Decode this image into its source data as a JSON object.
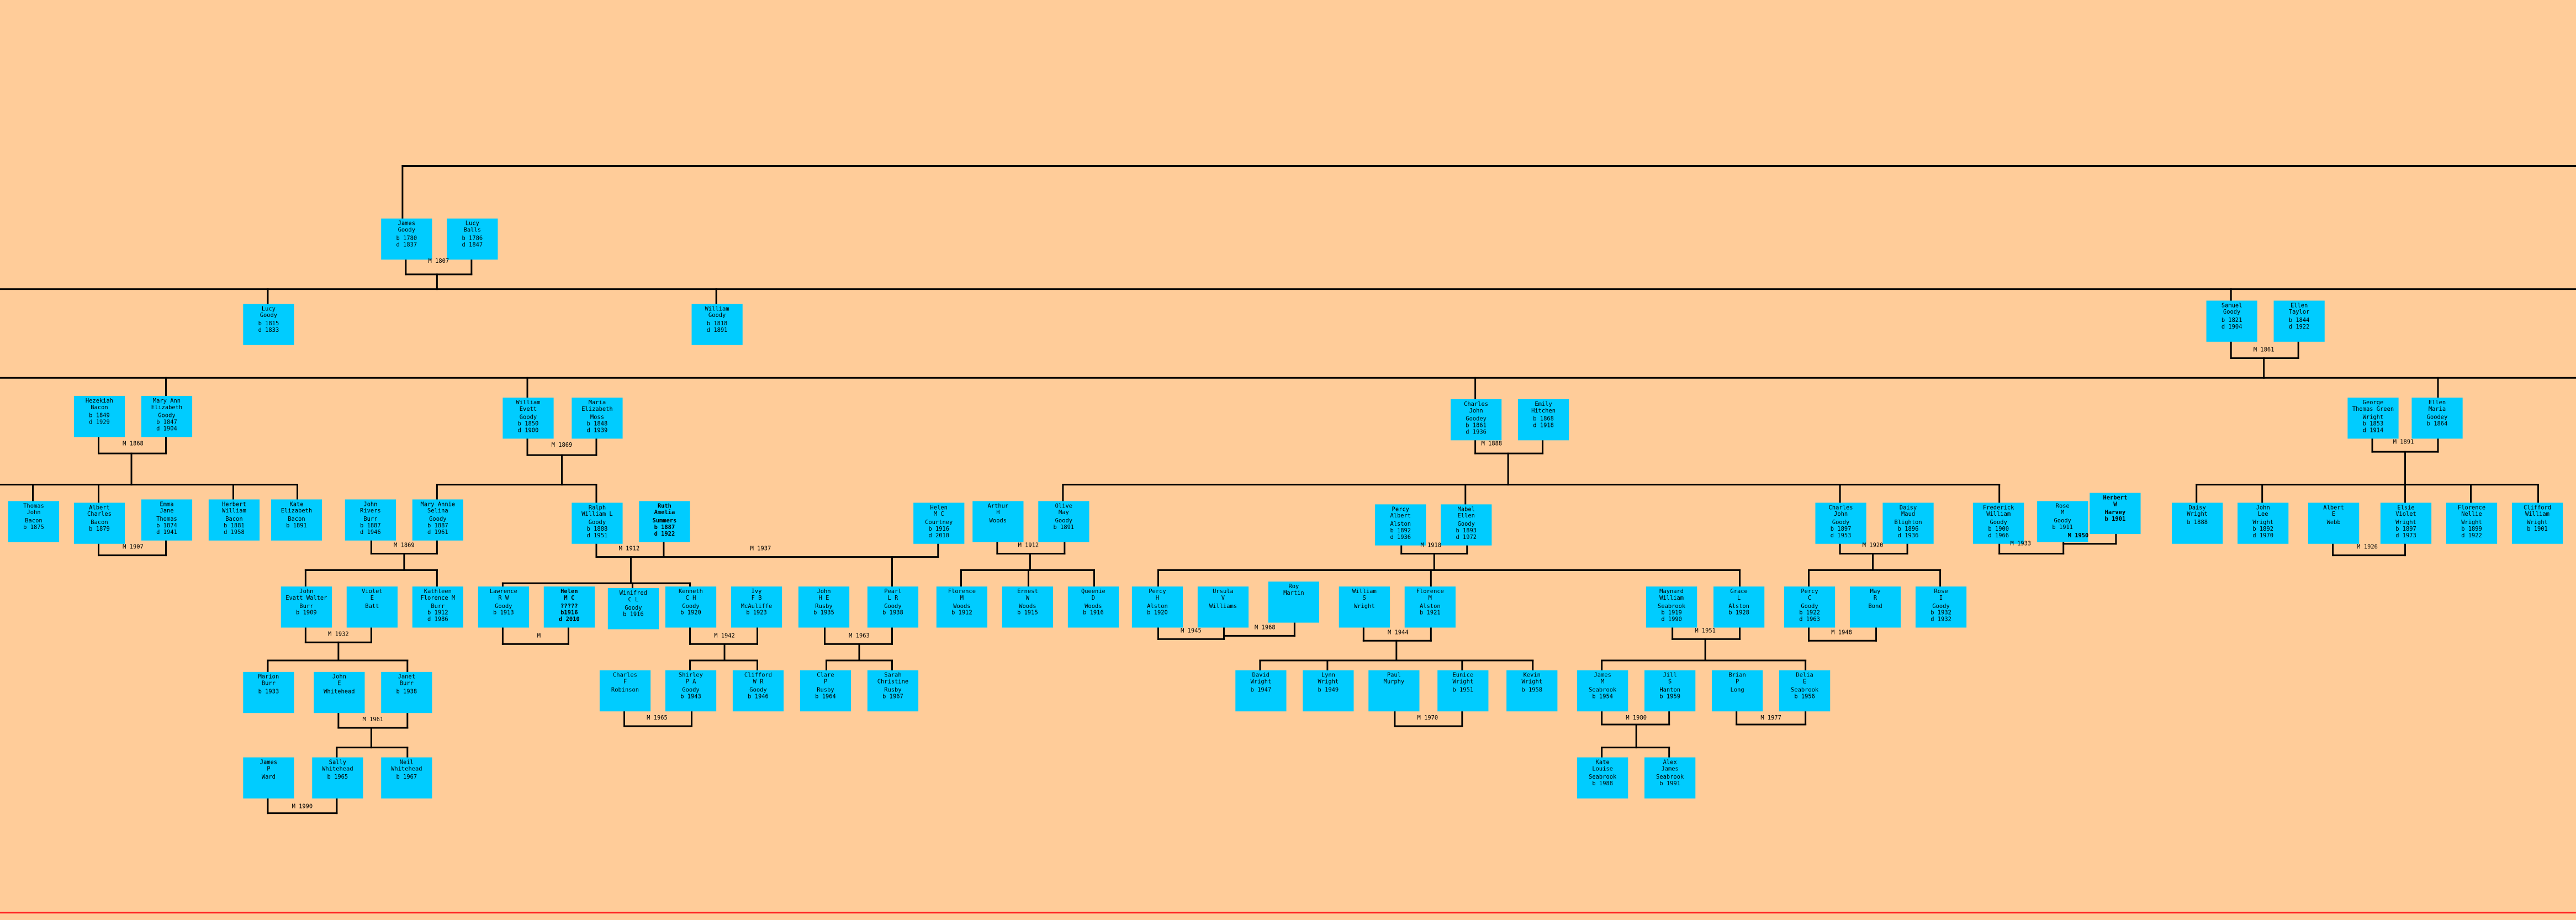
{
  "colors": {
    "background": "#FFCC99",
    "card": "#00CCFF",
    "line": "#000000",
    "bottom_rule": "#FF2020"
  },
  "people": [
    {
      "text": "James\nGoody\nb 1780\nd 1837"
    },
    {
      "text": "Lucy\nBalls\nb 1786\nd 1847"
    },
    {
      "text": "Lucy\nGoody\nb 1815\nd 1833"
    },
    {
      "text": "William\nGoody\nb 1818\nd 1891"
    },
    {
      "text": "Samuel\nGoody\nb 1821\nd 1904"
    },
    {
      "text": "Ellen\nTaylor\nb 1844\nd 1922"
    },
    {
      "text": "Hezekiah\nBacon\nb 1849\nd 1929"
    },
    {
      "text": "Mary Ann\nElizabeth\nGoody\nb 1847\nd 1904"
    },
    {
      "text": "William\nEvett\nGoody\nb 1850\nd 1900"
    },
    {
      "text": "Maria\nElizabeth\nMoss\nb 1848\nd 1939"
    },
    {
      "text": "Charles\nJohn\nGoodey\nb 1861\nd 1936"
    },
    {
      "text": "Emily\nHitchen\nb 1868\nd 1918"
    },
    {
      "text": "George\nThomas Green\nWright\nb 1853\nd 1914"
    },
    {
      "text": "Ellen\nMaria\nGoodey\nb 1864"
    },
    {
      "text": "Thomas\nJohn\nBacon\nb 1875"
    },
    {
      "text": "Albert\nCharles\nBacon\nb 1879"
    },
    {
      "text": "Emma\nJane\nThomas\nb 1874\nd 1941"
    },
    {
      "text": "Herbert\nWilliam\nBacon\nb 1881\nd 1958"
    },
    {
      "text": "Kate\nElizabeth\nBacon\nb 1891"
    },
    {
      "text": "John\nRivers\nBurr\nb 1887\nd 1946"
    },
    {
      "text": "Mary Annie\nSelina\nGoody\nb 1887\nd 1961"
    },
    {
      "text": "Ralph\nWilliam L\nGoody\nb 1888\nd 1951"
    },
    {
      "text": "Ruth\nAmelia\nSummers\nb 1887\nd 1922"
    },
    {
      "text": "Helen\nM C\nCourtney\nb 1916\nd 2010"
    },
    {
      "text": "Arthur\nH\nWoods"
    },
    {
      "text": "Olive\nMay\nGoody\nb 1891"
    },
    {
      "text": "Percy\nAlbert\nAlston\nb 1892\nd 1936"
    },
    {
      "text": "Mabel\nEllen\nGoody\nb 1893\nd 1972"
    },
    {
      "text": "Charles\nJohn\nGoody\nb 1897\nd 1953"
    },
    {
      "text": "Daisy\nMaud\nBlighton\nb 1896\nd 1936"
    },
    {
      "text": "Frederick\nWilliam\nGoody\nb 1900\nd 1966"
    },
    {
      "text": "Rose\nM\nGoody\nb 1911"
    },
    {
      "text": "Herbert\nW\nHarvey\nb 1901"
    },
    {
      "text": "Daisy\nWright\nb 1888"
    },
    {
      "text": "John\nLee\nWright\nb 1892\nd 1970"
    },
    {
      "text": "Albert\nE\nWebb"
    },
    {
      "text": "Elsie\nViolet\nWright\nb 1897\nd 1973"
    },
    {
      "text": "Florence\nNellie\nWright\nb 1899\nd 1922"
    },
    {
      "text": "Clifford\nWilliam\nWright\nb 1901"
    },
    {
      "text": "John\nEvatt Walter\nBurr\nb 1909"
    },
    {
      "text": "Violet\nE\nBatt"
    },
    {
      "text": "Kathleen\nFlorence M\nBurr\nb 1912\nd 1986"
    },
    {
      "text": "Lawrence\nR W\nGoody\nb 1913"
    },
    {
      "text": "Helen\nM C\n?????\nb1916\nd 2010"
    },
    {
      "text": "Winifred\nC L\nGoody\nb 1916"
    },
    {
      "text": "Kenneth\nC H\nGoody\nb 1920"
    },
    {
      "text": "Ivy\nF B\nMcAuliffe\nb 1923"
    },
    {
      "text": "John\nH E\nRusby\nb 1935"
    },
    {
      "text": "Pearl\nL R\nGoody\nb 1938"
    },
    {
      "text": "Florence\nM\nWoods\nb 1912"
    },
    {
      "text": "Ernest\nW\nWoods\nb 1915"
    },
    {
      "text": "Queenie\nD\nWoods\nb 1916"
    },
    {
      "text": "Percy\nH\nAlston\nb 1920"
    },
    {
      "text": "Ursula\nV\nWilliams"
    },
    {
      "text": "Roy\nMartin"
    },
    {
      "text": "William\nS\nWright"
    },
    {
      "text": "Florence\nM\nAlston\nb 1921"
    },
    {
      "text": "Maynard\nWilliam\nSeabrook\nb 1919\nd 1990"
    },
    {
      "text": "Grace\nL\nAlston\nb 1928"
    },
    {
      "text": "Percy\nC\nGoody\nb 1922\nd 1963"
    },
    {
      "text": "May\nR\nBond"
    },
    {
      "text": "Rose\nI\nGoody\nb 1932\nd 1932"
    },
    {
      "text": "Marion\nBurr\nb 1933"
    },
    {
      "text": "John\nE\nWhitehead"
    },
    {
      "text": "Janet\nBurr\nb 1938"
    },
    {
      "text": "Charles\nF\nRobinson"
    },
    {
      "text": "Shirley\nP A\nGoody\nb 1943"
    },
    {
      "text": "Clifford\nW R\nGoody\nb 1946"
    },
    {
      "text": "Clare\nP\nRusby\nb 1964"
    },
    {
      "text": "Sarah\nChristine\nRusby\nb 1967"
    },
    {
      "text": "David\nWright\nb 1947"
    },
    {
      "text": "Lynn\nWright\nb 1949"
    },
    {
      "text": "Paul\nMurphy"
    },
    {
      "text": "Eunice\nWright\nb 1951"
    },
    {
      "text": "Kevin\nWright\nb 1958"
    },
    {
      "text": "James\nM\nSeabrook\nb 1954"
    },
    {
      "text": "Jill\nS\nHanton\nb 1959"
    },
    {
      "text": "Brian\nP\nLong"
    },
    {
      "text": "Delia\nE\nSeabrook\nb 1956"
    },
    {
      "text": "James\nP\nWard"
    },
    {
      "text": "Sally\nWhitehead\nb 1965"
    },
    {
      "text": "Neil\nWhitehead\nb 1967"
    },
    {
      "text": "Kate\nLouise\nSeabrook\nb 1988"
    },
    {
      "text": "Alex\nJames\nSeabrook\nb 1991"
    }
  ],
  "marriages": [
    "M 1807",
    "M 1861",
    "M 1868",
    "M 1869",
    "M 1888",
    "M 1891",
    "M 1907",
    "M 1869",
    "M 1912",
    "M 1937",
    "M 1912",
    "M 1918",
    "M 1920",
    "M 1933",
    "M 1950",
    "M 1926",
    "M 1932",
    "M",
    "M 1942",
    "M 1963",
    "M 1945",
    "M 1968",
    "M 1944",
    "M 1951",
    "M 1948",
    "M 1961",
    "M 1965",
    "M 1970",
    "M 1980",
    "M 1977",
    "M 1990"
  ]
}
